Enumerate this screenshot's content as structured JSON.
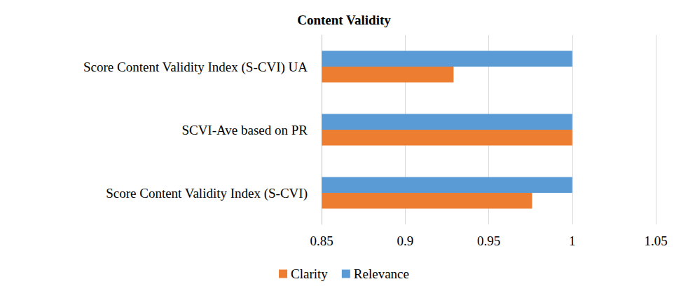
{
  "chart_data": {
    "type": "bar",
    "title": "Content Validity",
    "orientation": "horizontal",
    "categories": [
      "Score Content Validity Index (S-CVI)",
      "SCVI-Ave based on PR",
      "Score Content Validity Index (S-CVI) UA"
    ],
    "series": [
      {
        "name": "Clarity",
        "color": "#ed7d31",
        "values": [
          0.976,
          1,
          0.929
        ]
      },
      {
        "name": "Relevance",
        "color": "#5b9bd5",
        "values": [
          1,
          1,
          1
        ]
      }
    ],
    "xlim": [
      0.85,
      1.05
    ],
    "xticks": [
      0.85,
      0.9,
      0.95,
      1,
      1.05
    ],
    "grid": true,
    "legend": "bottom"
  }
}
